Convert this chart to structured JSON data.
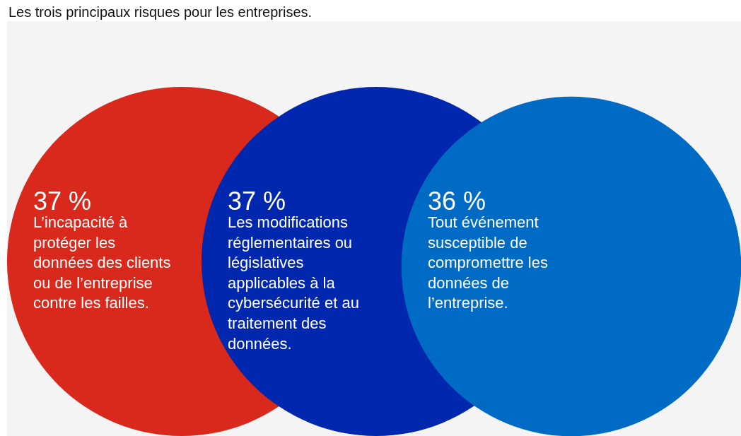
{
  "chart_data": {
    "type": "other",
    "title": "Les trois principaux risques pour les entreprises.",
    "categories": [
      "L’incapacité à protéger les données des clients ou de l’entreprise contre les failles.",
      "Les modifications réglementaires ou législatives applicables à la cybersécurité et au traitement des données.",
      "Tout événement susceptible de compromettre les données de l’entreprise."
    ],
    "values": [
      37,
      37,
      36
    ],
    "value_labels": [
      "37 %",
      "37 %",
      "36 %"
    ],
    "colors": [
      "#d9291c",
      "#0027ad",
      "#006bc4"
    ]
  }
}
